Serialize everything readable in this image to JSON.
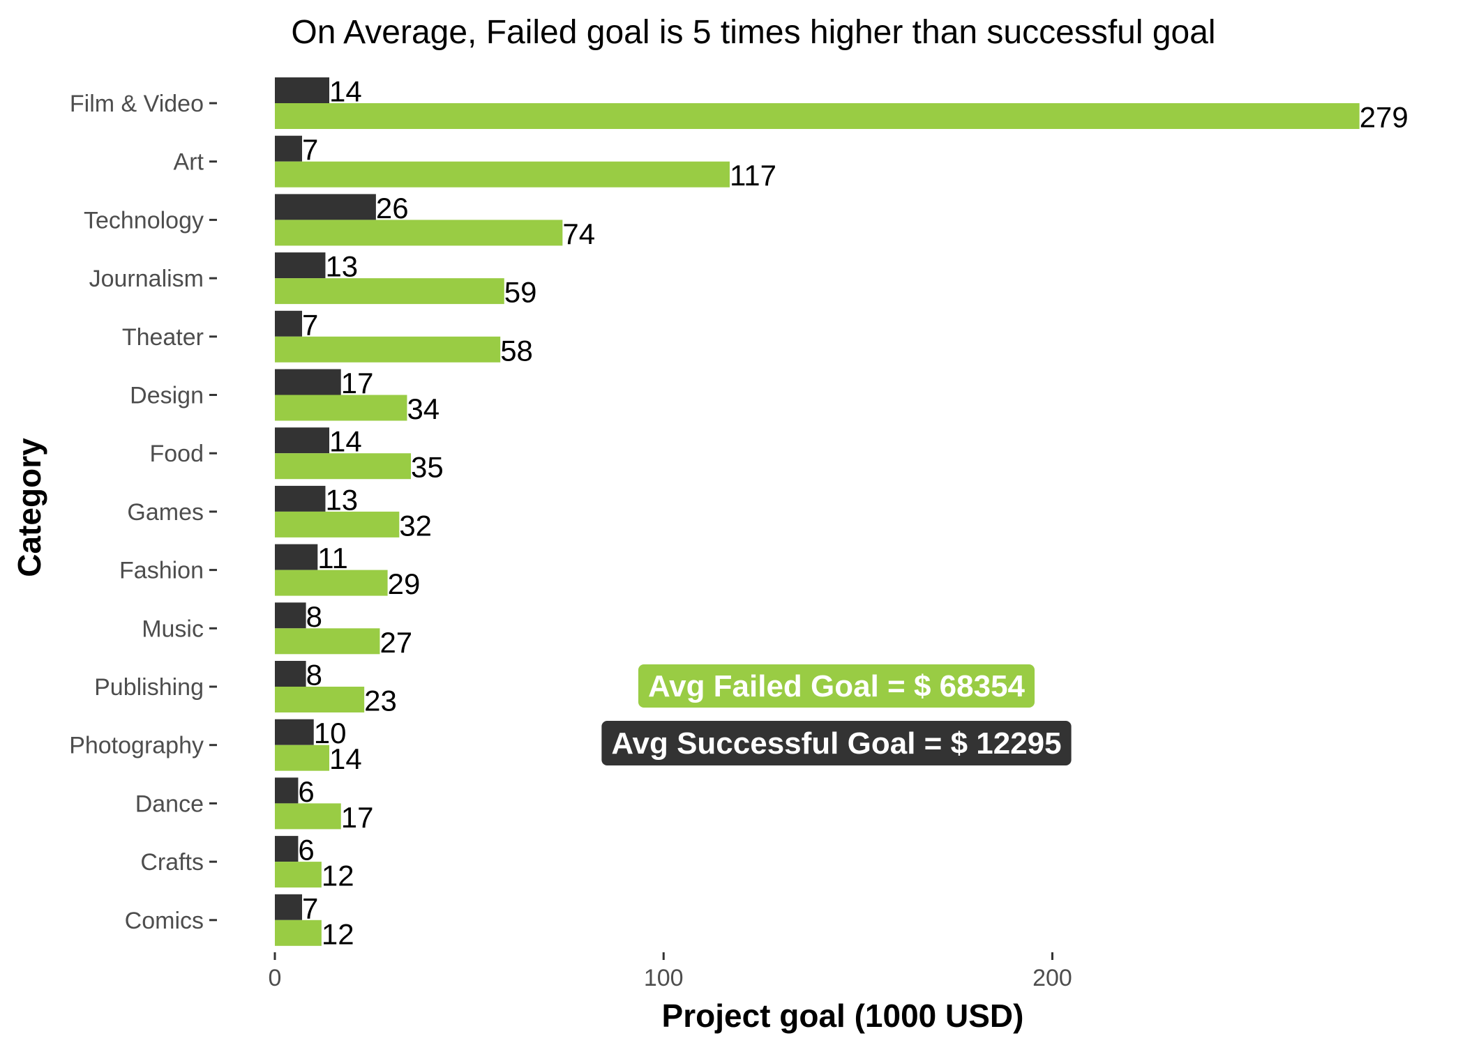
{
  "chart_data": {
    "type": "bar",
    "orientation": "horizontal",
    "title": "On Average, Failed goal is 5 times higher than successful goal",
    "xlabel": "Project goal (1000 USD)",
    "ylabel": "Category",
    "xlim": [
      0,
      290
    ],
    "xticks": [
      0,
      100,
      200
    ],
    "grid": false,
    "categories": [
      "Film & Video",
      "Art",
      "Technology",
      "Journalism",
      "Theater",
      "Design",
      "Food",
      "Games",
      "Fashion",
      "Music",
      "Publishing",
      "Photography",
      "Dance",
      "Crafts",
      "Comics"
    ],
    "series": [
      {
        "color": "#333333",
        "values": [
          14,
          7,
          26,
          13,
          7,
          17,
          14,
          13,
          11,
          8,
          8,
          10,
          6,
          6,
          7
        ]
      },
      {
        "color": "#99cc44",
        "values": [
          279,
          117,
          74,
          59,
          58,
          34,
          35,
          32,
          29,
          27,
          23,
          14,
          17,
          12,
          12
        ]
      }
    ],
    "annotations": [
      {
        "text": "Avg Failed Goal = $ 68354",
        "color": "#99cc44"
      },
      {
        "text": "Avg Successful Goal = $ 12295",
        "color": "#333333"
      }
    ]
  }
}
